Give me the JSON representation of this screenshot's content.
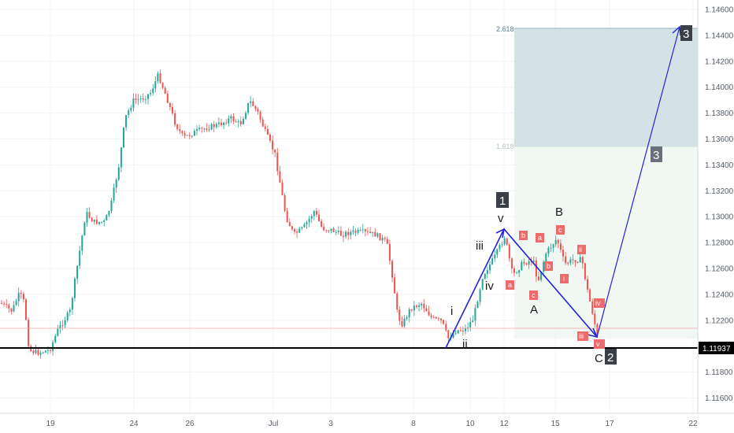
{
  "chart_data": {
    "type": "candlestick",
    "symbol_current_price": "1.11937",
    "y_axis": {
      "ticks": [
        "1.14600",
        "1.14400",
        "1.14200",
        "1.14000",
        "1.13800",
        "1.13600",
        "1.13400",
        "1.13200",
        "1.13000",
        "1.12800",
        "1.12600",
        "1.12400",
        "1.12200",
        "1.12000",
        "1.11800",
        "1.11600"
      ],
      "range": [
        1.114,
        1.1463
      ]
    },
    "x_axis": {
      "ticks": [
        "19",
        "24",
        "26",
        "Jul",
        "3",
        "8",
        "10",
        "12",
        "15",
        "17",
        "22"
      ]
    },
    "fib_levels": [
      {
        "label": "2.618",
        "value": 1.1445
      },
      {
        "label": "1.618",
        "value": 1.1353
      }
    ],
    "horizontal_lines": [
      {
        "name": "support",
        "value": 1.11937,
        "color": "#000000"
      },
      {
        "name": "last-price",
        "value": 1.1209,
        "color": "#f4a3a3"
      }
    ],
    "wave_counts": {
      "primary": [
        {
          "label": "1",
          "boxed": true
        },
        {
          "label": "2",
          "boxed": true
        },
        {
          "label": "3",
          "boxed": true
        },
        {
          "label": "3",
          "boxed": true
        }
      ],
      "minor": [
        "i",
        "ii",
        "iii",
        "iv",
        "v",
        "A",
        "B",
        "C"
      ],
      "sub_minor": [
        "a",
        "b",
        "c",
        "a",
        "b",
        "c",
        "i",
        "ii",
        "iii",
        "iv",
        "v"
      ]
    },
    "colors": {
      "up": "#26a69a",
      "down": "#ef5350",
      "projection": "#2323d6",
      "fib_top_zone": "#cfdfe6",
      "fib_bottom_zone": "#eef5ef",
      "label_box": "#3a3f47",
      "sub_label": "#ef6b6b"
    }
  }
}
